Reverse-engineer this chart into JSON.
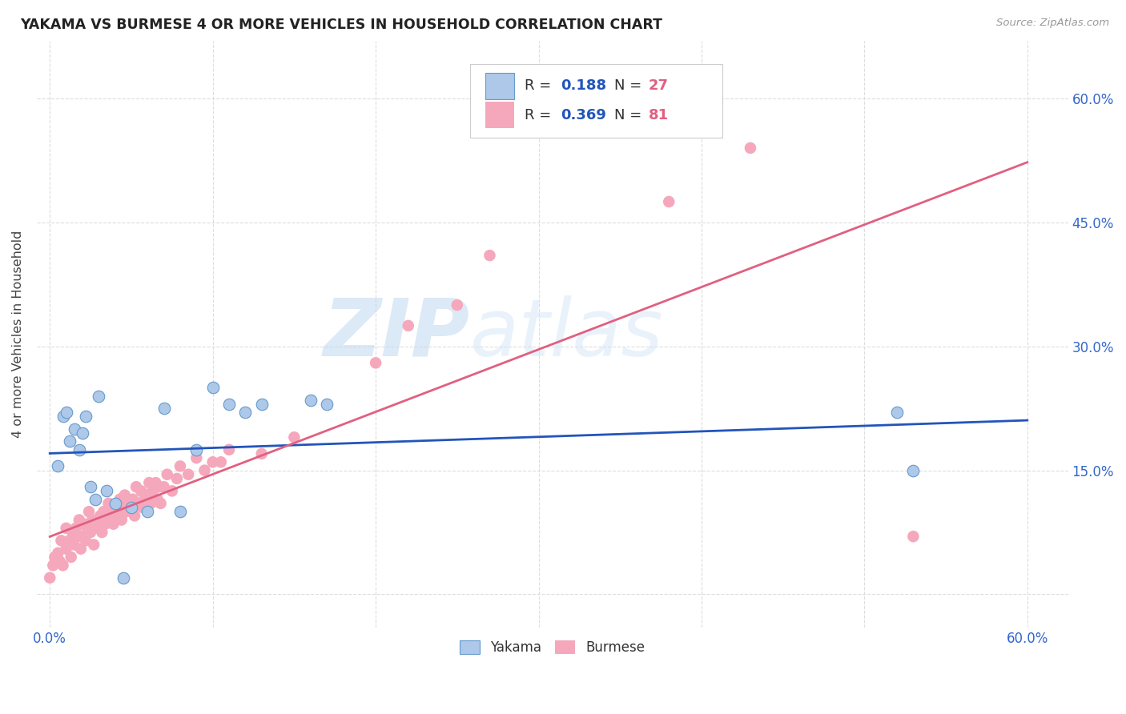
{
  "title": "YAKAMA VS BURMESE 4 OR MORE VEHICLES IN HOUSEHOLD CORRELATION CHART",
  "source": "Source: ZipAtlas.com",
  "ylabel": "4 or more Vehicles in Household",
  "yakama_color": "#adc8e8",
  "burmese_color": "#f5a8bc",
  "yakama_line_color": "#2255bb",
  "burmese_line_color": "#e06080",
  "background_color": "#ffffff",
  "grid_color": "#dddddd",
  "tick_color": "#3366cc",
  "title_color": "#222222",
  "ylabel_color": "#444444",
  "watermark_color": "#c8dff0",
  "legend_border_color": "#cccccc",
  "legend_text_color": "#333333",
  "yakama_R": 0.188,
  "yakama_N": 27,
  "burmese_R": 0.369,
  "burmese_N": 81,
  "yakama_x": [
    0.005,
    0.008,
    0.01,
    0.012,
    0.015,
    0.018,
    0.02,
    0.022,
    0.025,
    0.028,
    0.03,
    0.035,
    0.04,
    0.045,
    0.05,
    0.06,
    0.07,
    0.08,
    0.09,
    0.1,
    0.11,
    0.12,
    0.13,
    0.16,
    0.17,
    0.52,
    0.53
  ],
  "yakama_y": [
    0.155,
    0.215,
    0.22,
    0.185,
    0.2,
    0.175,
    0.195,
    0.215,
    0.13,
    0.115,
    0.24,
    0.125,
    0.11,
    0.02,
    0.105,
    0.1,
    0.225,
    0.1,
    0.175,
    0.25,
    0.23,
    0.22,
    0.23,
    0.235,
    0.23,
    0.22,
    0.15
  ],
  "burmese_x": [
    0.0,
    0.002,
    0.003,
    0.005,
    0.006,
    0.007,
    0.008,
    0.01,
    0.01,
    0.012,
    0.013,
    0.014,
    0.015,
    0.016,
    0.017,
    0.018,
    0.019,
    0.02,
    0.021,
    0.022,
    0.023,
    0.024,
    0.025,
    0.026,
    0.027,
    0.028,
    0.03,
    0.031,
    0.032,
    0.033,
    0.034,
    0.035,
    0.036,
    0.037,
    0.038,
    0.039,
    0.04,
    0.041,
    0.042,
    0.043,
    0.044,
    0.045,
    0.046,
    0.047,
    0.048,
    0.05,
    0.051,
    0.052,
    0.053,
    0.055,
    0.056,
    0.057,
    0.058,
    0.06,
    0.061,
    0.062,
    0.063,
    0.065,
    0.066,
    0.067,
    0.068,
    0.07,
    0.072,
    0.075,
    0.078,
    0.08,
    0.085,
    0.09,
    0.095,
    0.1,
    0.105,
    0.11,
    0.13,
    0.15,
    0.2,
    0.22,
    0.25,
    0.27,
    0.38,
    0.43,
    0.53
  ],
  "burmese_y": [
    0.02,
    0.035,
    0.045,
    0.05,
    0.04,
    0.065,
    0.035,
    0.055,
    0.08,
    0.065,
    0.045,
    0.07,
    0.06,
    0.08,
    0.07,
    0.09,
    0.055,
    0.07,
    0.085,
    0.065,
    0.08,
    0.1,
    0.075,
    0.09,
    0.06,
    0.085,
    0.08,
    0.095,
    0.075,
    0.1,
    0.085,
    0.095,
    0.11,
    0.09,
    0.105,
    0.085,
    0.095,
    0.11,
    0.1,
    0.115,
    0.09,
    0.105,
    0.12,
    0.1,
    0.115,
    0.1,
    0.115,
    0.095,
    0.13,
    0.11,
    0.125,
    0.105,
    0.115,
    0.12,
    0.135,
    0.11,
    0.125,
    0.135,
    0.115,
    0.13,
    0.11,
    0.13,
    0.145,
    0.125,
    0.14,
    0.155,
    0.145,
    0.165,
    0.15,
    0.16,
    0.16,
    0.175,
    0.17,
    0.19,
    0.28,
    0.325,
    0.35,
    0.41,
    0.475,
    0.54,
    0.07
  ],
  "xlim": [
    -0.008,
    0.625
  ],
  "ylim": [
    -0.04,
    0.67
  ],
  "xtick_pos": [
    0.0,
    0.1,
    0.2,
    0.3,
    0.4,
    0.5,
    0.6
  ],
  "xtick_labels": [
    "0.0%",
    "",
    "",
    "",
    "",
    "",
    "60.0%"
  ],
  "ytick_pos": [
    0.0,
    0.15,
    0.3,
    0.45,
    0.6
  ],
  "ytick_labels": [
    "",
    "15.0%",
    "30.0%",
    "45.0%",
    "60.0%"
  ]
}
